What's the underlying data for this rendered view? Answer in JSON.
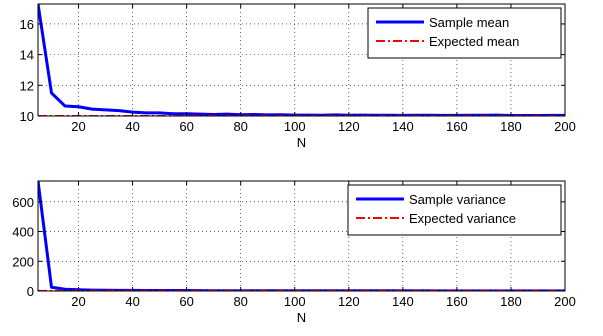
{
  "chart_data": [
    {
      "type": "line",
      "title": "",
      "xlabel": "N",
      "ylabel": "",
      "xlim": [
        5,
        200
      ],
      "ylim": [
        10,
        17.3
      ],
      "xticks": [
        20,
        40,
        60,
        80,
        100,
        120,
        140,
        160,
        180,
        200
      ],
      "yticks": [
        10,
        12,
        14,
        16
      ],
      "grid": true,
      "legend_position": "top-right",
      "series": [
        {
          "name": "Sample mean",
          "color": "#0000ff",
          "style": "solid",
          "x": [
            5,
            10,
            15,
            20,
            25,
            30,
            35,
            40,
            45,
            50,
            55,
            60,
            65,
            70,
            75,
            80,
            85,
            90,
            95,
            100,
            105,
            110,
            115,
            120,
            125,
            130,
            135,
            140,
            145,
            150,
            155,
            160,
            165,
            170,
            175,
            180,
            185,
            190,
            195,
            200
          ],
          "values": [
            17.3,
            11.5,
            10.65,
            10.6,
            10.45,
            10.4,
            10.35,
            10.25,
            10.2,
            10.2,
            10.15,
            10.15,
            10.12,
            10.1,
            10.12,
            10.08,
            10.1,
            10.07,
            10.08,
            10.06,
            10.06,
            10.05,
            10.07,
            10.05,
            10.06,
            10.05,
            10.05,
            10.04,
            10.05,
            10.05,
            10.04,
            10.04,
            10.05,
            10.05,
            10.06,
            10.03,
            10.03,
            10.03,
            10.04,
            10.04
          ]
        },
        {
          "name": "Expected mean",
          "color": "#ff0000",
          "style": "dashdot",
          "x": [
            5,
            200
          ],
          "values": [
            10,
            10
          ]
        }
      ]
    },
    {
      "type": "line",
      "title": "",
      "xlabel": "N",
      "ylabel": "",
      "xlim": [
        5,
        200
      ],
      "ylim": [
        0,
        740
      ],
      "xticks": [
        20,
        40,
        60,
        80,
        100,
        120,
        140,
        160,
        180,
        200
      ],
      "yticks": [
        0,
        200,
        400,
        600
      ],
      "grid": true,
      "legend_position": "top-right",
      "series": [
        {
          "name": "Sample variance",
          "color": "#0000ff",
          "style": "solid",
          "x": [
            5,
            10,
            15,
            20,
            25,
            30,
            35,
            40,
            45,
            50,
            60,
            70,
            80,
            90,
            100,
            120,
            140,
            160,
            180,
            200
          ],
          "values": [
            740,
            25,
            12,
            8,
            6,
            5,
            4,
            4,
            3,
            3,
            3,
            2,
            2,
            2,
            2,
            2,
            2,
            1,
            1,
            1
          ]
        },
        {
          "name": "Expected variance",
          "color": "#ff0000",
          "style": "dashdot",
          "x": [
            5,
            200
          ],
          "values": [
            1,
            1
          ]
        }
      ]
    }
  ]
}
